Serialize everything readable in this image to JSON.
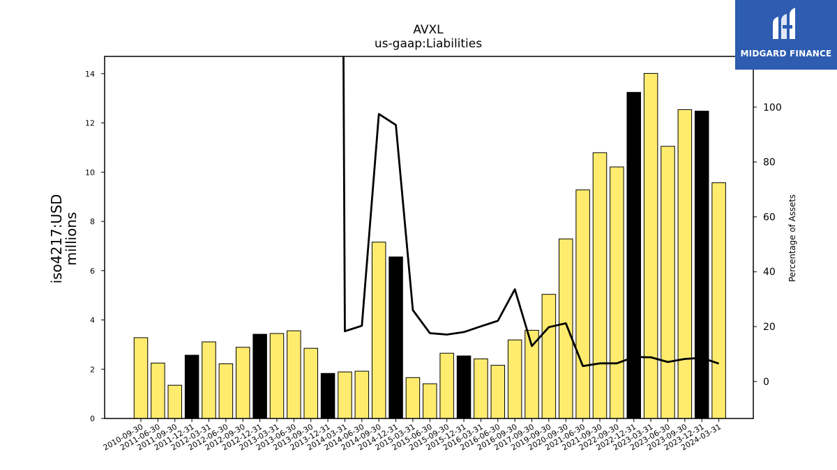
{
  "chart_data": {
    "type": "bar",
    "title": "AVXL",
    "subtitle": "us-gaap:Liabilities",
    "ylabel": "iso4217:USD\nmillions",
    "y2label": "Percentage of Assets",
    "ylim": [
      0,
      14.7
    ],
    "y2lim": [
      -13.5,
      118.5
    ],
    "yticks": [
      0,
      2,
      4,
      6,
      8,
      10,
      12,
      14
    ],
    "y2ticks": [
      0,
      20,
      40,
      60,
      80,
      100
    ],
    "colors": {
      "annual": "#000000",
      "quarterly": "#ffec6e",
      "line": "#000000"
    },
    "categories": [
      "2010-09-30",
      "2011-06-30",
      "2011-09-30",
      "2011-12-31",
      "2012-03-31",
      "2012-06-30",
      "2012-09-30",
      "2012-12-31",
      "2013-03-31",
      "2013-06-30",
      "2013-09-30",
      "2013-12-31",
      "2014-03-31",
      "2014-06-30",
      "2014-09-30",
      "2014-12-31",
      "2015-03-31",
      "2015-06-30",
      "2015-09-30",
      "2015-12-31",
      "2016-03-31",
      "2016-06-30",
      "2016-09-30",
      "2017-09-30",
      "2019-09-30",
      "2020-09-30",
      "2021-06-30",
      "2021-09-30",
      "2022-09-30",
      "2022-12-31",
      "2023-03-31",
      "2023-06-30",
      "2023-09-30",
      "2023-12-31",
      "2024-03-31"
    ],
    "series": [
      {
        "kind": "bar",
        "values": [
          3.28,
          2.25,
          1.35,
          2.57,
          3.11,
          2.22,
          2.89,
          3.42,
          3.45,
          3.56,
          2.85,
          1.83,
          1.89,
          1.92,
          7.16,
          6.56,
          1.66,
          1.41,
          2.65,
          2.54,
          2.42,
          2.16,
          3.19,
          3.58,
          5.04,
          7.29,
          9.28,
          10.79,
          10.21,
          13.24,
          14.01,
          11.05,
          12.54,
          12.48,
          9.57
        ],
        "highlight": [
          false,
          false,
          false,
          true,
          false,
          false,
          false,
          true,
          false,
          false,
          false,
          true,
          false,
          false,
          false,
          true,
          false,
          false,
          false,
          true,
          false,
          false,
          false,
          false,
          false,
          false,
          false,
          false,
          false,
          true,
          false,
          false,
          false,
          true,
          false
        ]
      },
      {
        "kind": "line",
        "values": [
          null,
          null,
          null,
          null,
          null,
          null,
          null,
          null,
          null,
          null,
          null,
          null,
          18.3,
          20.3,
          97.5,
          93.5,
          26.0,
          17.6,
          17.1,
          18.0,
          20.1,
          22.1,
          33.6,
          12.9,
          19.8,
          21.2,
          5.6,
          6.6,
          6.6,
          8.9,
          8.8,
          7.1,
          8.2,
          8.6,
          6.5
        ],
        "offscale_start": 120
      }
    ]
  }
}
